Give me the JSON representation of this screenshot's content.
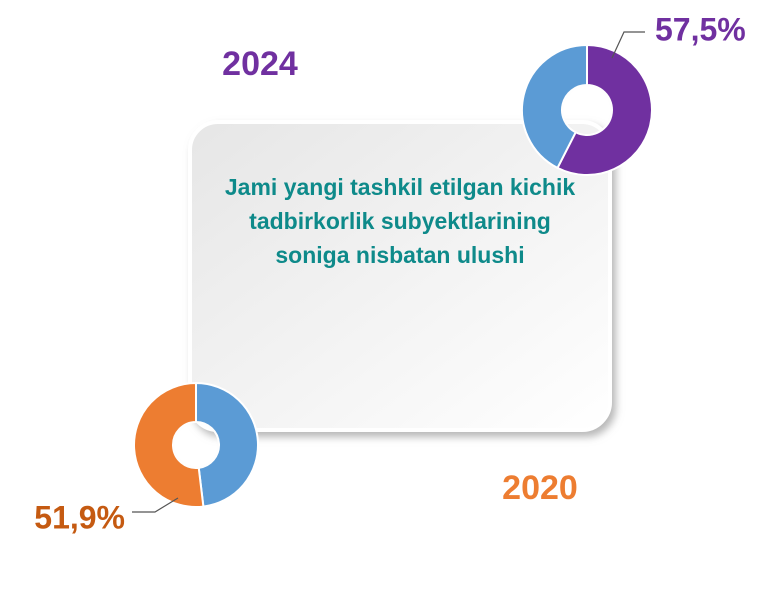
{
  "chart_data": [
    {
      "type": "pie",
      "donut": true,
      "title": "2024",
      "title_color": "#7030a0",
      "categories": [
        null,
        null
      ],
      "values": [
        57.5,
        42.5
      ],
      "value_labels": [
        "57,5%",
        null
      ],
      "colors": [
        "#7030a0",
        "#5b9bd5"
      ],
      "label_color": "#7030a0"
    },
    {
      "type": "pie",
      "donut": true,
      "title": "2020",
      "title_color": "#ed7d31",
      "categories": [
        null,
        null
      ],
      "values": [
        48.1,
        51.9
      ],
      "value_labels": [
        null,
        "51,9%"
      ],
      "colors": [
        "#5b9bd5",
        "#ed7d31"
      ],
      "label_color": "#c55a11"
    }
  ],
  "caption": "Jami yangi tashkil etilgan kichik tadbirkorlik subyektlarining soniga nisbatan ulushi"
}
